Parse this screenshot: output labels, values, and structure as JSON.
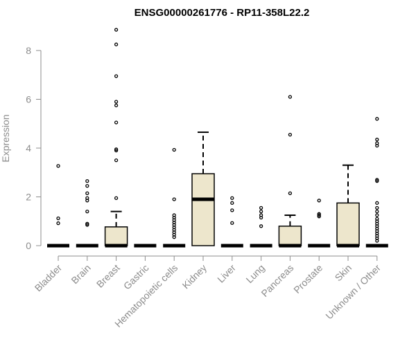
{
  "chart_data": {
    "type": "boxplot",
    "title": "ENSG00000261776 - RP11-358L22.2",
    "xlabel": "",
    "ylabel": "Expression",
    "ylim": [
      0,
      8.9
    ],
    "yticks": [
      0,
      2,
      4,
      6,
      8
    ],
    "grid": false,
    "colors": {
      "box_fill": "#ede6cc",
      "stroke": "#000000",
      "axis": "#8c8c8c"
    },
    "categories": [
      "Bladder",
      "Brain",
      "Breast",
      "Gastric",
      "Hematopoietic cells",
      "Kidney",
      "Liver",
      "Lung",
      "Pancreas",
      "Prostate",
      "Skin",
      "Unknown / Other"
    ],
    "boxes": [
      {
        "q1": 0,
        "median": 0,
        "q3": 0,
        "whisker_low": 0,
        "whisker_high": 0,
        "outliers": [
          3.27,
          1.12,
          0.92
        ]
      },
      {
        "q1": 0,
        "median": 0,
        "q3": 0,
        "whisker_low": 0,
        "whisker_high": 0,
        "outliers": [
          2.65,
          2.45,
          2.15,
          1.95,
          1.85,
          1.4,
          0.9,
          0.85
        ]
      },
      {
        "q1": 0,
        "median": 0,
        "q3": 0.77,
        "whisker_low": 0,
        "whisker_high": 1.4,
        "outliers": [
          8.85,
          8.25,
          6.95,
          5.9,
          5.75,
          5.05,
          3.95,
          3.9,
          3.5,
          1.95
        ]
      },
      {
        "q1": 0,
        "median": 0,
        "q3": 0,
        "whisker_low": 0,
        "whisker_high": 0,
        "outliers": []
      },
      {
        "q1": 0,
        "median": 0,
        "q3": 0,
        "whisker_low": 0,
        "whisker_high": 0,
        "outliers": [
          3.93,
          1.9,
          1.25,
          1.15,
          1.05,
          0.95,
          0.85,
          0.75,
          0.65,
          0.55,
          0.45,
          0.35
        ]
      },
      {
        "q1": 0,
        "median": 1.9,
        "q3": 2.95,
        "whisker_low": 0,
        "whisker_high": 4.65,
        "outliers": []
      },
      {
        "q1": 0,
        "median": 0,
        "q3": 0,
        "whisker_low": 0,
        "whisker_high": 0,
        "outliers": [
          1.95,
          1.75,
          1.45,
          0.93
        ]
      },
      {
        "q1": 0,
        "median": 0,
        "q3": 0,
        "whisker_low": 0,
        "whisker_high": 0,
        "outliers": [
          1.55,
          1.4,
          1.25,
          1.15,
          0.8
        ]
      },
      {
        "q1": 0,
        "median": 0,
        "q3": 0.8,
        "whisker_low": 0,
        "whisker_high": 1.25,
        "outliers": [
          6.1,
          4.55,
          2.15
        ]
      },
      {
        "q1": 0,
        "median": 0,
        "q3": 0,
        "whisker_low": 0,
        "whisker_high": 0,
        "outliers": [
          1.85,
          1.3,
          1.25,
          1.2
        ]
      },
      {
        "q1": 0,
        "median": 0,
        "q3": 1.75,
        "whisker_low": 0,
        "whisker_high": 3.3,
        "outliers": []
      },
      {
        "q1": 0,
        "median": 0,
        "q3": 0,
        "whisker_low": 0,
        "whisker_high": 0,
        "outliers": [
          5.2,
          4.35,
          4.2,
          4.1,
          2.7,
          2.65,
          1.75,
          1.55,
          1.4,
          1.25,
          1.1,
          1.0,
          0.9,
          0.8,
          0.7,
          0.6,
          0.5,
          0.4,
          0.3,
          0.2
        ]
      }
    ]
  }
}
